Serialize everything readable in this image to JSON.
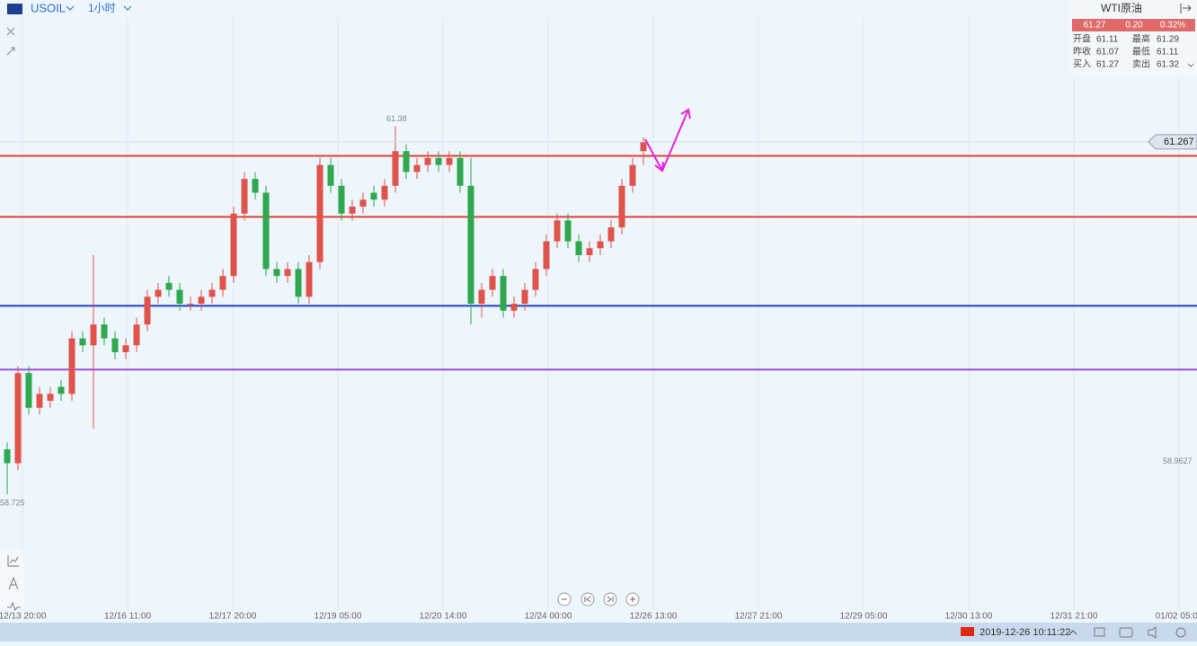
{
  "header": {
    "symbol": "USOIL",
    "interval": "1小时"
  },
  "quote_panel": {
    "name": "WTI原油",
    "price": "61.27",
    "change": "0.20",
    "change_pct": "0.32%",
    "rows": [
      [
        "开盘",
        "61.11",
        "最高",
        "61.29"
      ],
      [
        "昨收",
        "61.07",
        "最低",
        "61.11"
      ],
      [
        "买入",
        "61.27",
        "卖出",
        "61.32"
      ]
    ]
  },
  "chart_data": {
    "type": "candlestick",
    "ylim": [
      57.82,
      62.16
    ],
    "open": [
      59.05,
      58.95,
      59.6,
      59.35,
      59.4,
      59.5,
      59.45,
      59.85,
      59.8,
      59.95,
      59.85,
      59.75,
      59.8,
      59.95,
      60.15,
      60.25,
      60.2,
      60.1,
      60.1,
      60.15,
      60.2,
      60.3,
      60.75,
      61.0,
      60.9,
      60.35,
      60.3,
      60.35,
      60.15,
      60.4,
      61.1,
      60.95,
      60.75,
      60.8,
      60.9,
      60.85,
      60.95,
      61.2,
      61.05,
      61.1,
      61.15,
      61.1,
      61.15,
      60.95,
      60.1,
      60.2,
      60.3,
      60.05,
      60.1,
      60.2,
      60.35,
      60.55,
      60.7,
      60.55,
      60.45,
      60.5,
      60.55,
      60.65,
      60.95,
      61.2
    ],
    "high": [
      59.1,
      59.65,
      59.65,
      59.5,
      59.5,
      59.55,
      59.9,
      59.9,
      60.45,
      60.0,
      59.9,
      59.85,
      60.0,
      60.2,
      60.25,
      60.3,
      60.25,
      60.15,
      60.2,
      60.25,
      60.35,
      60.8,
      61.05,
      61.05,
      60.95,
      60.4,
      60.4,
      60.4,
      60.45,
      61.15,
      61.15,
      61.0,
      60.85,
      60.9,
      60.95,
      61.0,
      61.38,
      61.25,
      61.15,
      61.2,
      61.2,
      61.2,
      61.2,
      61.15,
      60.25,
      60.35,
      60.35,
      60.15,
      60.25,
      60.4,
      60.6,
      60.75,
      60.75,
      60.6,
      60.55,
      60.6,
      60.7,
      61.0,
      61.15,
      61.3
    ],
    "low": [
      58.725,
      58.9,
      59.3,
      59.3,
      59.35,
      59.4,
      59.4,
      59.75,
      59.2,
      59.8,
      59.7,
      59.7,
      59.75,
      59.9,
      60.1,
      60.15,
      60.05,
      60.05,
      60.05,
      60.1,
      60.15,
      60.25,
      60.7,
      60.85,
      60.3,
      60.25,
      60.25,
      60.1,
      60.1,
      60.35,
      60.9,
      60.7,
      60.7,
      60.75,
      60.8,
      60.8,
      60.9,
      61.0,
      61.0,
      61.05,
      61.05,
      61.05,
      60.9,
      59.95,
      60.0,
      60.15,
      60.0,
      60.0,
      60.05,
      60.15,
      60.3,
      60.5,
      60.5,
      60.4,
      60.4,
      60.45,
      60.5,
      60.6,
      60.9,
      61.1
    ],
    "close": [
      58.95,
      59.6,
      59.35,
      59.45,
      59.45,
      59.45,
      59.85,
      59.8,
      59.95,
      59.85,
      59.75,
      59.8,
      59.95,
      60.15,
      60.2,
      60.2,
      60.1,
      60.1,
      60.15,
      60.2,
      60.3,
      60.75,
      61.0,
      60.9,
      60.35,
      60.3,
      60.35,
      60.15,
      60.4,
      61.1,
      60.95,
      60.75,
      60.8,
      60.85,
      60.85,
      60.95,
      61.2,
      61.05,
      61.1,
      61.15,
      61.1,
      61.15,
      60.95,
      60.1,
      60.2,
      60.3,
      60.05,
      60.1,
      60.2,
      60.35,
      60.55,
      60.7,
      60.55,
      60.45,
      60.5,
      60.55,
      60.65,
      60.95,
      61.1,
      61.27
    ],
    "up_color": "#e0534a",
    "down_color": "#2fa84f",
    "levels": [
      {
        "value": 61.166,
        "color": "#e0412f"
      },
      {
        "value": 60.726,
        "color": "#e0412f"
      },
      {
        "value": 60.085,
        "color": "#1f3fbf"
      },
      {
        "value": 59.625,
        "color": "#9b4fe0"
      }
    ],
    "annotations": [
      {
        "value": 61.38,
        "label": "61.38"
      },
      {
        "value": 58.725,
        "label": "58.725"
      }
    ],
    "last_price": {
      "value": 61.267,
      "label": "61.267"
    },
    "right_labels": [
      {
        "value": 58.9627,
        "label": "58.9627"
      }
    ],
    "x_labels": [
      "12/13 20:00",
      "12/16 11:00",
      "12/17 20:00",
      "12/19 05:00",
      "12/20 14:00",
      "12/24 00:00",
      "12/26 13:00",
      "12/27 21:00",
      "12/29 05:00",
      "12/30 13:00",
      "12/31 21:00",
      "01/02 05:00"
    ]
  },
  "footer": {
    "datetime": "2019-12-26 10:11:22"
  }
}
